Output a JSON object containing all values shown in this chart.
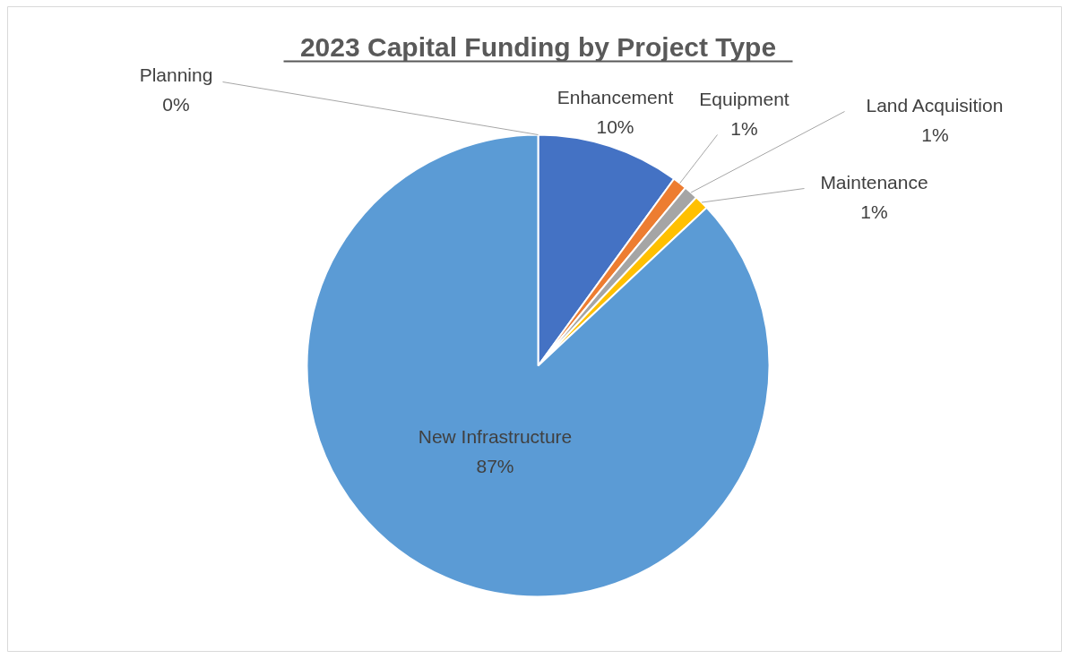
{
  "chart_data": {
    "type": "pie",
    "title": "2023 Capital Funding by Project Type",
    "categories": [
      "Enhancement",
      "Equipment",
      "Land Acquisition",
      "Maintenance",
      "New Infrastructure",
      "Planning"
    ],
    "values": [
      10,
      1,
      1,
      1,
      87,
      0
    ],
    "colors": [
      "#4472c4",
      "#ed7d31",
      "#a5a5a5",
      "#ffc000",
      "#5b9bd5",
      "#70ad47"
    ],
    "value_labels": [
      "10%",
      "1%",
      "1%",
      "1%",
      "87%",
      "0%"
    ]
  }
}
